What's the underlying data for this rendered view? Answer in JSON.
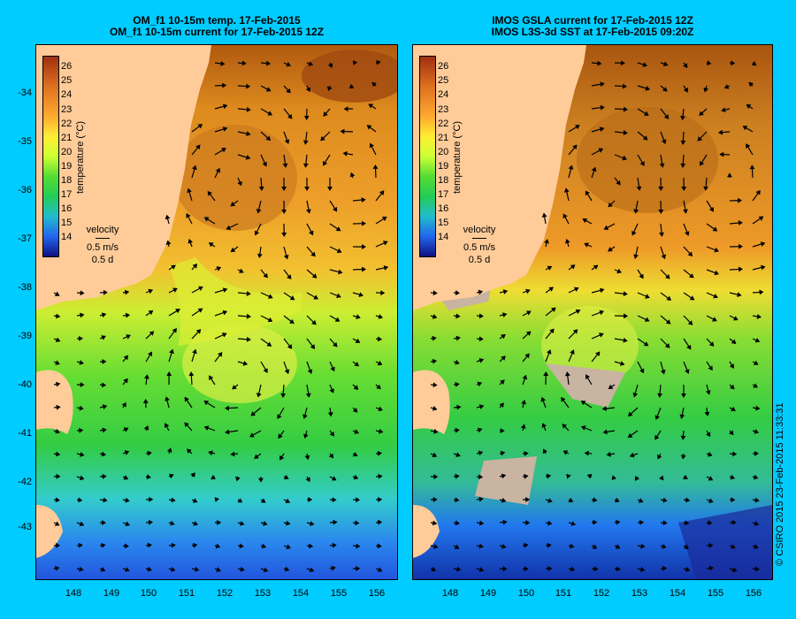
{
  "left_panel": {
    "title_line1": "OM_f1 10-15m temp. 17-Feb-2015",
    "title_line2": "OM_f1 10-15m current for 17-Feb-2015 12Z"
  },
  "right_panel": {
    "title_line1": "IMOS GSLA current for 17-Feb-2015 12Z",
    "title_line2": "IMOS L3S-3d SST at 17-Feb-2015 09:20Z"
  },
  "y_ticks": [
    "-34",
    "-35",
    "-36",
    "-37",
    "-38",
    "-39",
    "-40",
    "-41",
    "-42",
    "-43"
  ],
  "x_ticks": [
    "148",
    "149",
    "150",
    "151",
    "152",
    "153",
    "154",
    "155",
    "156"
  ],
  "colorbar": {
    "title": "temperature (°C)",
    "labels": [
      "26",
      "25",
      "24",
      "23",
      "22",
      "21",
      "20",
      "19",
      "18",
      "17",
      "16",
      "15",
      "14"
    ]
  },
  "velocity_key": {
    "label": "velocity",
    "speed": "0.5 m/s",
    "duration": "0.5 d"
  },
  "copyright": "© CSIRO 2015   23-Feb-2015 11:33:31",
  "colors": {
    "background": "#00ccff",
    "land": "#ffcc99",
    "no_data": "#c8b4a0"
  }
}
